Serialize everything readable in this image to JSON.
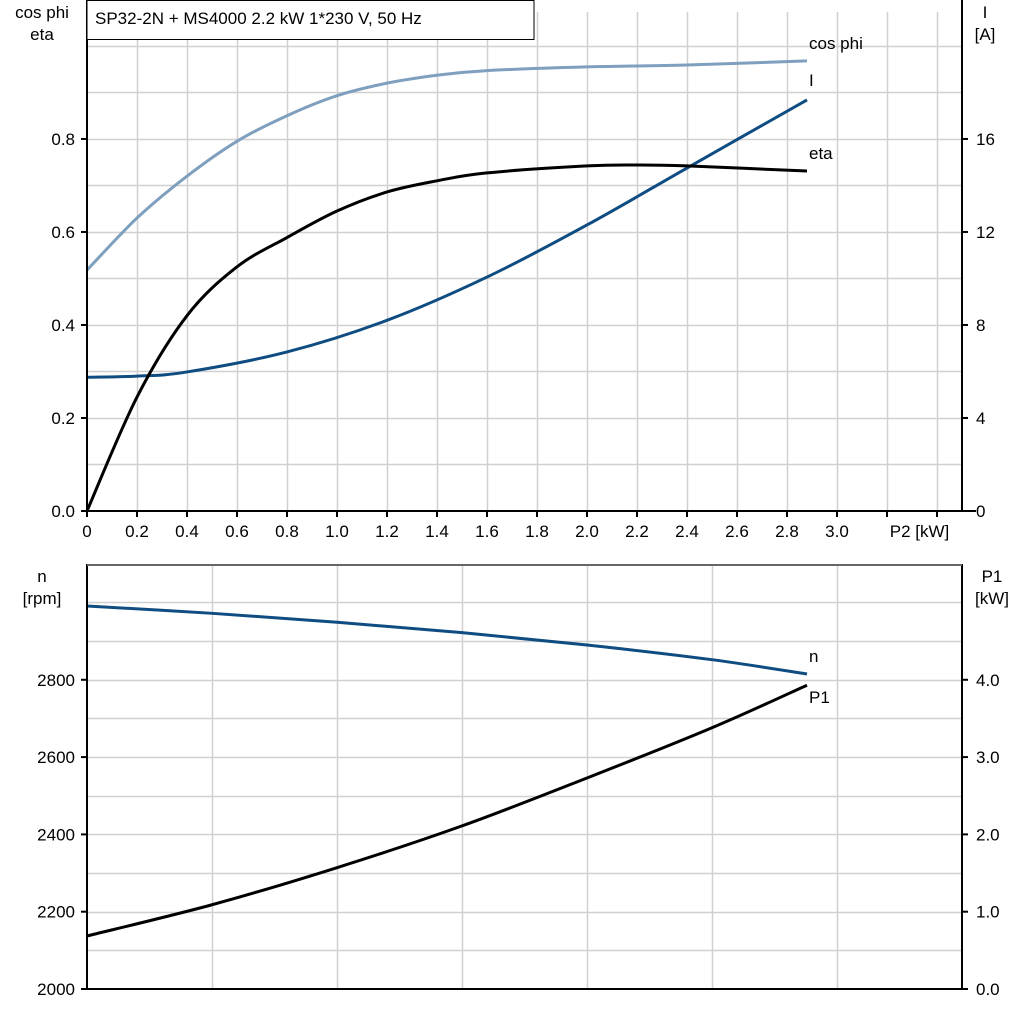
{
  "title": "SP32-2N + MS4000   2.2 kW   1*230 V, 50 Hz",
  "colors": {
    "cos_phi": "#7f9fbf",
    "current": "#0f4c81",
    "eta": "#000000",
    "speed": "#0f4c81",
    "p1": "#000000",
    "grid": "#d0d0d0"
  },
  "chart_data": [
    {
      "type": "line",
      "title": "SP32-2N + MS4000   2.2 kW   1*230 V, 50 Hz",
      "xlabel": "P2 [kW]",
      "xlim": [
        0,
        3.5
      ],
      "xticks": [
        0,
        0.2,
        0.4,
        0.6,
        0.8,
        1.0,
        1.2,
        1.4,
        1.6,
        1.8,
        2.0,
        2.2,
        2.4,
        2.6,
        2.8,
        3.0
      ],
      "xtick_labels": [
        "0",
        "0.2",
        "0.4",
        "0.6",
        "0.8",
        "1.0",
        "1.2",
        "1.4",
        "1.6",
        "1.8",
        "2.0",
        "2.2",
        "2.4",
        "2.6",
        "2.8",
        "3.0"
      ],
      "ylabel_left": [
        "cos phi",
        "eta"
      ],
      "ylim_left": [
        0,
        1.073
      ],
      "yticks_left": [
        "0.0",
        "0.2",
        "0.4",
        "0.6",
        "0.8"
      ],
      "ylabel_right": [
        "I",
        "[A]"
      ],
      "ylim_right": [
        0,
        21.46
      ],
      "yticks_right": [
        "0",
        "4",
        "8",
        "12",
        "16"
      ],
      "grid": true,
      "series": [
        {
          "name": "cos phi",
          "axis": "left",
          "x": [
            0,
            0.2,
            0.4,
            0.6,
            0.8,
            1.0,
            1.2,
            1.4,
            1.6,
            2.0,
            2.4,
            2.88
          ],
          "values": [
            0.518,
            0.63,
            0.72,
            0.795,
            0.85,
            0.893,
            0.92,
            0.937,
            0.947,
            0.955,
            0.959,
            0.968
          ]
        },
        {
          "name": "I",
          "axis": "right",
          "x": [
            0,
            0.2,
            0.4,
            0.8,
            1.2,
            1.6,
            2.0,
            2.4,
            2.88
          ],
          "values": [
            5.75,
            5.8,
            5.98,
            6.84,
            8.2,
            10.06,
            12.3,
            14.75,
            17.68
          ]
        },
        {
          "name": "eta",
          "axis": "left",
          "x": [
            0,
            0.2,
            0.4,
            0.6,
            0.8,
            1.0,
            1.2,
            1.4,
            1.6,
            2.0,
            2.2,
            2.4,
            2.88
          ],
          "values": [
            0,
            0.245,
            0.42,
            0.525,
            0.588,
            0.645,
            0.686,
            0.71,
            0.727,
            0.742,
            0.744,
            0.742,
            0.731
          ]
        }
      ]
    },
    {
      "type": "line",
      "xlim": [
        0,
        3.5
      ],
      "ylabel_left": [
        "n",
        "[rpm]"
      ],
      "ylim_left": [
        2000,
        3097
      ],
      "yticks_left": [
        "2000",
        "2200",
        "2400",
        "2600",
        "2800"
      ],
      "ylabel_right": [
        "P1",
        "[kW]"
      ],
      "ylim_right": [
        0,
        5.485
      ],
      "yticks_right": [
        "0.0",
        "1.0",
        "2.0",
        "3.0",
        "4.0"
      ],
      "grid": true,
      "series": [
        {
          "name": "n",
          "axis": "left",
          "x": [
            0,
            0.5,
            1.0,
            1.5,
            2.0,
            2.5,
            2.88
          ],
          "values": [
            2991,
            2972,
            2949,
            2922,
            2890,
            2852,
            2815
          ]
        },
        {
          "name": "P1",
          "axis": "right",
          "x": [
            0,
            0.5,
            1.0,
            1.5,
            2.0,
            2.5,
            2.88
          ],
          "values": [
            0.686,
            1.09,
            1.57,
            2.11,
            2.73,
            3.38,
            3.93
          ]
        }
      ]
    }
  ]
}
